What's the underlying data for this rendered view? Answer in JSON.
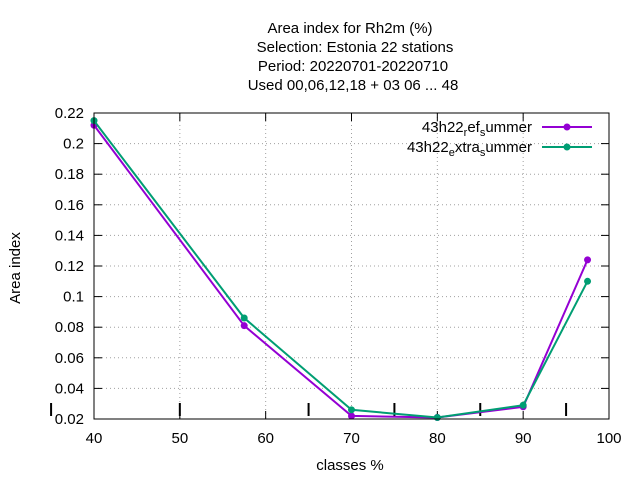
{
  "chart_data": {
    "type": "line",
    "title_lines": [
      "Area index  for Rh2m (%)",
      "Selection: Estonia      22 stations",
      "Period: 20220701-20220710",
      "Used  00,06,12,18  + 03 06 ... 48"
    ],
    "xlabel": "classes %",
    "ylabel": "Area index",
    "xlim": [
      40,
      100
    ],
    "ylim": [
      0.02,
      0.22
    ],
    "xticks": [
      40,
      50,
      60,
      70,
      80,
      90,
      100
    ],
    "yticks": [
      0.02,
      0.04,
      0.06,
      0.08,
      0.1,
      0.12,
      0.14,
      0.16,
      0.18,
      0.2,
      0.22
    ],
    "xtick_labels": [
      "40",
      "50",
      "60",
      "70",
      "80",
      "90",
      "100"
    ],
    "ytick_labels": [
      "0.02",
      "0.04",
      "0.06",
      "0.08",
      "0.1",
      "0.12",
      "0.14",
      "0.16",
      "0.18",
      "0.2",
      "0.22"
    ],
    "grid": true,
    "legend_position": "top-right",
    "class_boundaries": [
      35,
      50,
      65,
      75,
      85,
      95
    ],
    "series": [
      {
        "name": "43h22_ref_summer",
        "legend_parts": [
          [
            "43h22",
            ""
          ],
          [
            "r",
            "sub"
          ],
          [
            "ef",
            ""
          ],
          [
            "s",
            "sub"
          ],
          [
            "ummer",
            ""
          ]
        ],
        "color": "#9400d3",
        "x": [
          40,
          57.5,
          70,
          80,
          90,
          97.5
        ],
        "y": [
          0.212,
          0.081,
          0.022,
          0.021,
          0.028,
          0.124
        ]
      },
      {
        "name": "43h22_extra_summer",
        "legend_parts": [
          [
            "43h22",
            ""
          ],
          [
            "e",
            "sub"
          ],
          [
            "xtra",
            ""
          ],
          [
            "s",
            "sub"
          ],
          [
            "ummer",
            ""
          ]
        ],
        "color": "#009e73",
        "x": [
          40,
          57.5,
          70,
          80,
          90,
          97.5
        ],
        "y": [
          0.215,
          0.086,
          0.026,
          0.021,
          0.029,
          0.11
        ]
      }
    ]
  }
}
